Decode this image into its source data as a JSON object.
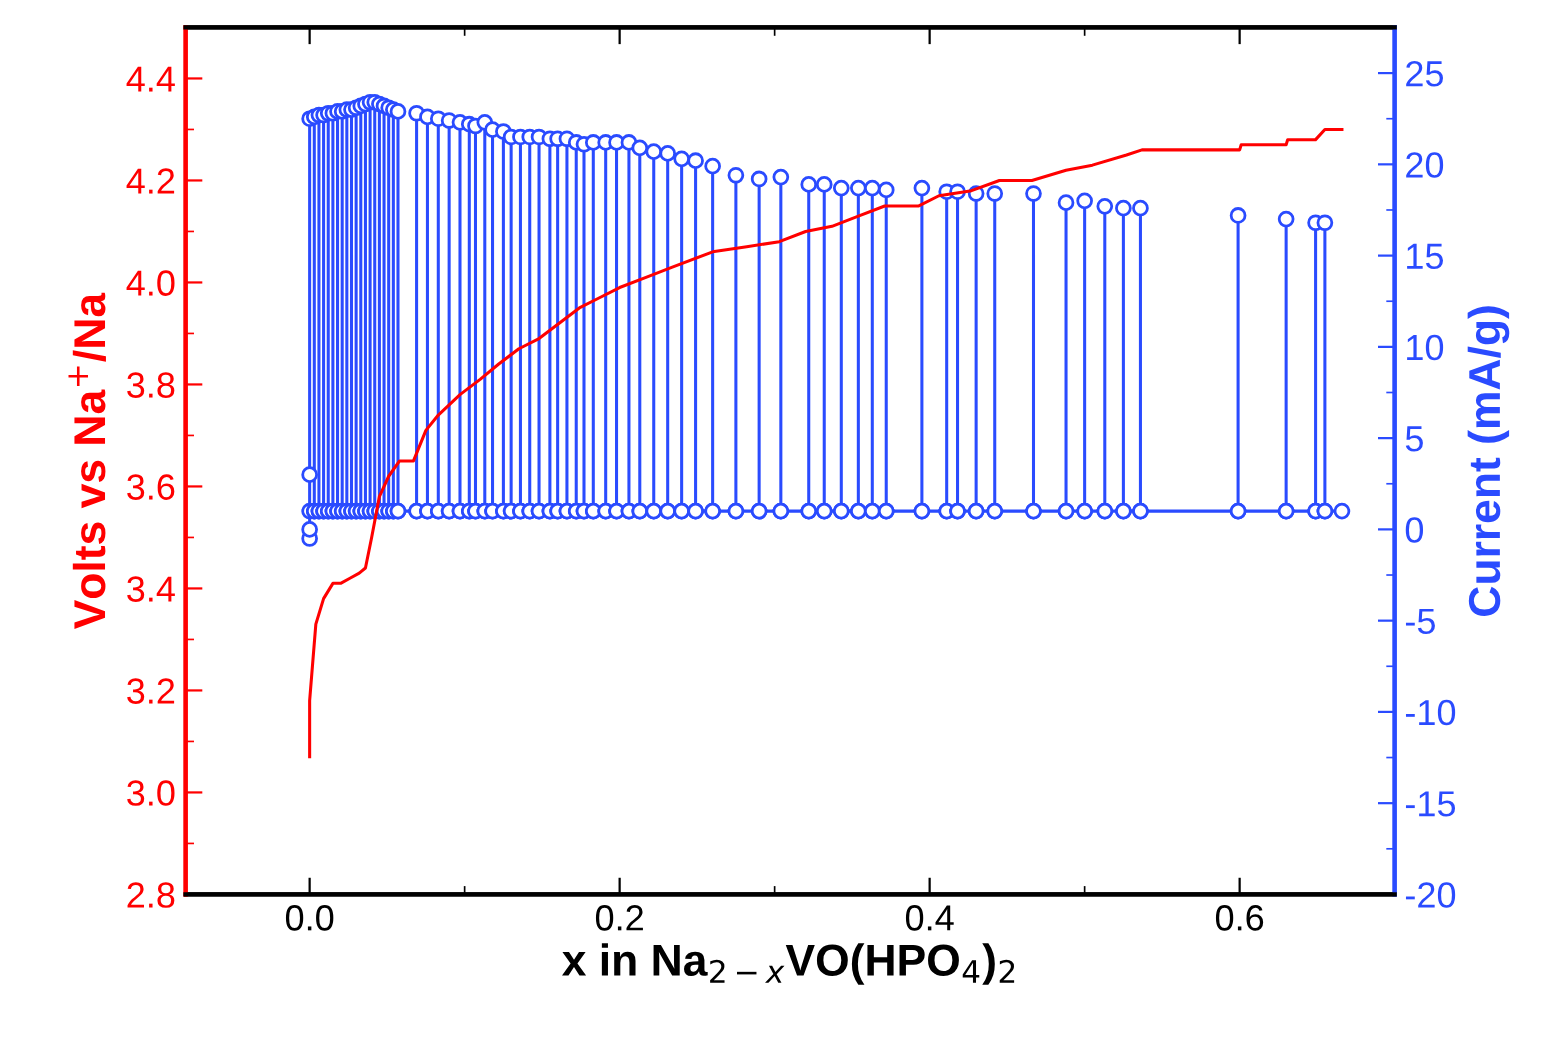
{
  "chart_data": {
    "type": "line",
    "xlabel": "x in Na$_{2−x}$VO(HPO$_{4}$)$_{2}$",
    "ylabel": "Volts vs Na$^{+}$/Na",
    "y2label": "Current (mA/g)",
    "xlim": [
      -0.08,
      0.7
    ],
    "xticks": [
      {
        "value": 0,
        "label": "0.0"
      },
      0.2,
      0.4,
      0.6
    ],
    "ylim": [
      2.8,
      4.5
    ],
    "yticks": [
      2.8,
      {
        "value": 3,
        "label": "3.0"
      },
      3.2,
      3.4,
      3.6,
      3.8,
      {
        "value": 4,
        "label": "4.0"
      },
      4.2,
      4.4
    ],
    "y2lim": [
      -20,
      27.5
    ],
    "y2ticks": [
      -20,
      -15,
      -10,
      -5,
      0,
      5,
      10,
      15,
      20,
      25
    ],
    "grid": false,
    "legend": false,
    "series": [
      {
        "color": "#ff0000",
        "marker": "none",
        "x": [
          0.0,
          0.0,
          0.004,
          0.009,
          0.015,
          0.02,
          0.026,
          0.032,
          0.036,
          0.04,
          0.045,
          0.051,
          0.058,
          0.067,
          0.075,
          0.083,
          0.097,
          0.11,
          0.122,
          0.135,
          0.148,
          0.161,
          0.174,
          0.187,
          0.2,
          0.217,
          0.234,
          0.26,
          0.282,
          0.303,
          0.32,
          0.337,
          0.354,
          0.371,
          0.393,
          0.406,
          0.427,
          0.445,
          0.466,
          0.488,
          0.505,
          0.527,
          0.537,
          0.6,
          0.601,
          0.63,
          0.631,
          0.649,
          0.655,
          0.666
        ],
        "values": [
          3.07,
          3.18,
          3.33,
          3.38,
          3.41,
          3.41,
          3.42,
          3.43,
          3.44,
          3.5,
          3.58,
          3.62,
          3.65,
          3.65,
          3.71,
          3.74,
          3.78,
          3.81,
          3.84,
          3.87,
          3.89,
          3.92,
          3.95,
          3.97,
          3.99,
          4.01,
          4.03,
          4.06,
          4.07,
          4.08,
          4.1,
          4.11,
          4.13,
          4.15,
          4.15,
          4.17,
          4.18,
          4.2,
          4.2,
          4.22,
          4.23,
          4.25,
          4.26,
          4.26,
          4.27,
          4.27,
          4.28,
          4.28,
          4.3,
          4.3
        ]
      },
      {
        "type": "line",
        "color": "#2a4bff",
        "marker": "circle",
        "axis": "y2",
        "x": [
          0,
          0,
          0,
          0,
          0,
          0.003,
          0.003,
          0.003,
          0.006,
          0.006,
          0.006,
          0.009,
          0.009,
          0.009,
          0.012,
          0.012,
          0.012,
          0.015,
          0.015,
          0.015,
          0.018,
          0.018,
          0.018,
          0.021,
          0.021,
          0.021,
          0.024,
          0.024,
          0.024,
          0.027,
          0.027,
          0.027,
          0.03,
          0.03,
          0.03,
          0.033,
          0.033,
          0.033,
          0.036,
          0.036,
          0.036,
          0.039,
          0.039,
          0.039,
          0.042,
          0.042,
          0.042,
          0.045,
          0.045,
          0.045,
          0.048,
          0.048,
          0.048,
          0.051,
          0.051,
          0.051,
          0.054,
          0.054,
          0.054,
          0.057,
          0.057,
          0.057,
          0.069,
          0.069,
          0.069,
          0.076,
          0.076,
          0.076,
          0.083,
          0.083,
          0.083,
          0.09,
          0.09,
          0.09,
          0.097,
          0.097,
          0.097,
          0.103,
          0.103,
          0.103,
          0.107,
          0.107,
          0.107,
          0.113,
          0.113,
          0.113,
          0.118,
          0.118,
          0.118,
          0.125,
          0.125,
          0.125,
          0.13,
          0.13,
          0.13,
          0.136,
          0.136,
          0.136,
          0.142,
          0.142,
          0.142,
          0.148,
          0.148,
          0.148,
          0.155,
          0.155,
          0.155,
          0.16,
          0.16,
          0.16,
          0.166,
          0.166,
          0.166,
          0.172,
          0.172,
          0.172,
          0.177,
          0.177,
          0.177,
          0.183,
          0.183,
          0.183,
          0.191,
          0.191,
          0.191,
          0.198,
          0.198,
          0.198,
          0.206,
          0.206,
          0.206,
          0.213,
          0.213,
          0.213,
          0.222,
          0.222,
          0.222,
          0.231,
          0.231,
          0.231,
          0.24,
          0.24,
          0.24,
          0.249,
          0.249,
          0.249,
          0.26,
          0.26,
          0.26,
          0.275,
          0.275,
          0.275,
          0.29,
          0.29,
          0.29,
          0.304,
          0.304,
          0.304,
          0.322,
          0.322,
          0.322,
          0.332,
          0.332,
          0.332,
          0.343,
          0.343,
          0.343,
          0.354,
          0.354,
          0.354,
          0.363,
          0.363,
          0.363,
          0.372,
          0.372,
          0.372,
          0.395,
          0.395,
          0.395,
          0.411,
          0.411,
          0.411,
          0.418,
          0.418,
          0.418,
          0.43,
          0.43,
          0.43,
          0.442,
          0.442,
          0.442,
          0.467,
          0.467,
          0.467,
          0.488,
          0.488,
          0.488,
          0.5,
          0.5,
          0.5,
          0.513,
          0.513,
          0.513,
          0.525,
          0.525,
          0.525,
          0.536,
          0.536,
          0.536,
          0.599,
          0.599,
          0.599,
          0.63,
          0.63,
          0.63,
          0.649,
          0.649,
          0.649,
          0.655,
          0.655,
          0.655,
          0.666
        ],
        "values": [
          -0.5,
          0,
          3,
          22.5,
          1,
          1,
          22.6,
          1,
          1,
          22.7,
          1,
          1,
          22.7,
          1,
          1,
          22.8,
          1,
          1,
          22.8,
          1,
          1,
          22.9,
          1,
          1,
          22.9,
          1,
          1,
          23.0,
          1,
          1,
          23.0,
          1,
          1,
          23.1,
          1,
          1,
          23.2,
          1,
          1,
          23.3,
          1,
          1,
          23.4,
          1,
          1,
          23.4,
          1,
          1,
          23.3,
          1,
          1,
          23.2,
          1,
          1,
          23.1,
          1,
          1,
          23.0,
          1,
          1,
          22.9,
          1,
          1,
          22.8,
          1,
          1,
          22.6,
          1,
          1,
          22.5,
          1,
          1,
          22.4,
          1,
          1,
          22.3,
          1,
          1,
          22.2,
          1,
          1,
          22.1,
          1,
          1,
          22.3,
          1,
          1,
          21.9,
          1,
          1,
          21.8,
          1,
          1,
          21.5,
          1,
          1,
          21.5,
          1,
          1,
          21.5,
          1,
          1,
          21.5,
          1,
          1,
          21.4,
          1,
          1,
          21.4,
          1,
          1,
          21.4,
          1,
          1,
          21.2,
          1,
          1,
          21.1,
          1,
          1,
          21.2,
          1,
          1,
          21.2,
          1,
          1,
          21.2,
          1,
          1,
          21.2,
          1,
          1,
          20.9,
          1,
          1,
          20.7,
          1,
          1,
          20.6,
          1,
          1,
          20.3,
          1,
          1,
          20.2,
          1,
          1,
          19.9,
          1,
          1,
          19.4,
          1,
          1,
          19.2,
          1,
          1,
          19.3,
          1,
          1,
          18.9,
          1,
          1,
          18.9,
          1,
          1,
          18.7,
          1,
          1,
          18.7,
          1,
          1,
          18.7,
          1,
          1,
          18.6,
          1,
          1,
          18.7,
          1,
          1,
          18.5,
          1,
          1,
          18.5,
          1,
          1,
          18.4,
          1,
          1,
          18.4,
          1,
          1,
          18.4,
          1,
          1,
          17.9,
          1,
          1,
          18.0,
          1,
          1,
          17.7,
          1,
          1,
          17.6,
          1,
          1,
          17.6,
          1,
          1,
          17.2,
          1,
          1,
          17.0,
          1,
          1,
          16.8,
          1,
          1,
          16.8,
          1,
          1
        ]
      }
    ]
  }
}
